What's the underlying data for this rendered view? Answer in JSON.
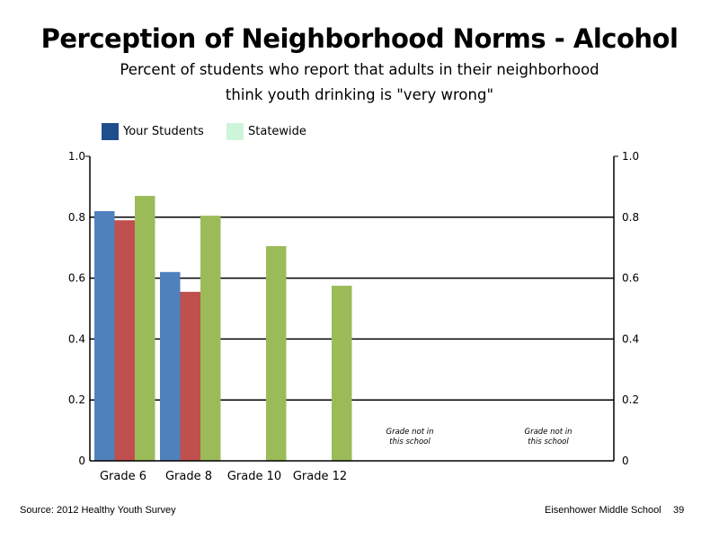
{
  "title": "Perception of Neighborhood Norms - Alcohol",
  "subtitle_line1": "Percent of students who report that adults in their neighborhood",
  "subtitle_line2": "think youth drinking is \"very wrong\"",
  "legend": [
    {
      "label": "Your Students",
      "color": "#1F4E8C"
    },
    {
      "label": "Statewide",
      "color": "#CCF5DA"
    }
  ],
  "footer": {
    "source": "Source: 2012 Healthy Youth Survey",
    "school": "Eisenhower Middle  School",
    "page": "39"
  },
  "chart_data": {
    "type": "bar",
    "categories": [
      "Grade 6",
      "Grade 8",
      "Grade 10",
      "Grade 12",
      "",
      ""
    ],
    "series": [
      {
        "color": "#4F81BD",
        "values": [
          0.82,
          0.62,
          null,
          null,
          null,
          null
        ]
      },
      {
        "color": "#C0504D",
        "values": [
          0.79,
          0.555,
          null,
          null,
          null,
          null
        ]
      },
      {
        "color": "#9BBB59",
        "values": [
          0.87,
          0.805,
          0.705,
          0.575,
          null,
          null
        ]
      }
    ],
    "ylim": [
      0,
      1.0
    ],
    "y_ticks_left": [
      "0",
      "0.2",
      "0.4",
      "0.6",
      "0.8",
      "1.0"
    ],
    "y_ticks_right": [
      "0",
      "0.2",
      "0.4",
      "0.6",
      "0.8",
      "1.0"
    ],
    "y_tick_values": [
      0,
      0.2,
      0.4,
      0.6,
      0.8,
      1.0
    ],
    "annotations": [
      {
        "category_index": 4,
        "line1": "Grade not in",
        "line2": "this school"
      },
      {
        "category_index": 5,
        "line1": "Grade not in",
        "line2": "this school"
      }
    ],
    "grid": true,
    "legend_position": "top-left"
  }
}
